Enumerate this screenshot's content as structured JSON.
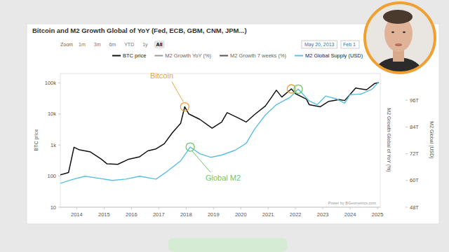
{
  "chart_data": {
    "type": "line",
    "title": "Bitcoin and M2 Growth Global of YoY (Fed, ECB, GBM, CNM, JPM...)",
    "zoom_label": "Zoom",
    "zoom_buttons": [
      "1m",
      "3m",
      "6m",
      "YTD",
      "1y",
      "All"
    ],
    "date_from": "May 20, 2013",
    "date_to": "Feb 1",
    "ylabel": "BTC price",
    "y2label": "M2 Global (USD)",
    "y3label": "M2 Growth Global of YoY (%)",
    "credit": "Power by BGeometrics.com",
    "annotations": [
      {
        "text": "Bitcoin",
        "color": "#e8a33c"
      },
      {
        "text": "Global M2",
        "color": "#6cc86a"
      }
    ],
    "log": "y",
    "grid": false,
    "legend": "top",
    "xlim": [
      2013.4,
      2025.1
    ],
    "xticks": [
      2014,
      2015,
      2016,
      2017,
      2018,
      2019,
      2020,
      2021,
      2022,
      2023,
      2024,
      2025
    ],
    "ylim": [
      10,
      200000
    ],
    "yticks": [
      10,
      100,
      {
        "value": 1000,
        "label": "1k"
      },
      {
        "value": 10000,
        "label": "10k"
      },
      {
        "value": 100000,
        "label": "100k"
      }
    ],
    "y2lim": [
      48,
      108
    ],
    "y2ticks": [
      {
        "value": 48,
        "label": "48T"
      },
      {
        "value": 60,
        "label": "60T"
      },
      {
        "value": 72,
        "label": "72T"
      },
      {
        "value": 84,
        "label": "84T"
      },
      {
        "value": 96,
        "label": "96T"
      }
    ],
    "series": [
      {
        "name": "BTC price",
        "color": "#111111",
        "type": "line",
        "x": [
          2013.4,
          2013.7,
          2013.9,
          2014.1,
          2014.5,
          2014.9,
          2015.1,
          2015.5,
          2015.9,
          2016.3,
          2016.6,
          2016.9,
          2017.2,
          2017.5,
          2017.8,
          2017.95,
          2018.1,
          2018.5,
          2018.95,
          2019.3,
          2019.5,
          2019.9,
          2020.2,
          2020.5,
          2020.9,
          2021.1,
          2021.3,
          2021.5,
          2021.85,
          2022.0,
          2022.4,
          2022.5,
          2022.9,
          2023.2,
          2023.6,
          2023.8,
          2024.0,
          2024.2,
          2024.6,
          2024.9,
          2025.05
        ],
        "values": [
          110,
          130,
          850,
          700,
          600,
          350,
          250,
          240,
          350,
          420,
          650,
          750,
          1100,
          2500,
          5000,
          17000,
          10000,
          6700,
          3500,
          5500,
          11000,
          7500,
          5500,
          9500,
          18000,
          32000,
          58000,
          35000,
          64000,
          45000,
          30000,
          20000,
          17000,
          25000,
          29000,
          27000,
          43000,
          68000,
          60000,
          96000,
          102000
        ]
      },
      {
        "name": "M2 Growth YoY (%)",
        "color": "#9a9a9a",
        "type": "line",
        "axis": "y2",
        "x": [
          2013.4,
          2025.05
        ],
        "values": [
          null,
          null
        ]
      },
      {
        "name": "M2 Growth 7 weeks (%)",
        "color": "#555555",
        "type": "line",
        "axis": "y2",
        "x": [
          2013.4,
          2025.05
        ],
        "values": [
          null,
          null
        ]
      },
      {
        "name": "M2 Global Supply (USD)",
        "color": "#5bbfe0",
        "type": "line",
        "axis": "y2",
        "x": [
          2013.4,
          2013.8,
          2014.3,
          2014.8,
          2015.3,
          2015.8,
          2016.3,
          2016.9,
          2017.3,
          2017.8,
          2018.15,
          2018.5,
          2018.9,
          2019.3,
          2019.8,
          2020.2,
          2020.5,
          2020.9,
          2021.3,
          2021.8,
          2022.1,
          2022.5,
          2022.8,
          2023.1,
          2023.5,
          2023.8,
          2024.0,
          2024.4,
          2024.8,
          2025.05
        ],
        "values": [
          58.7,
          60.3,
          61.9,
          61,
          60,
          60.6,
          61.9,
          60.6,
          64,
          68.8,
          75,
          72,
          70.4,
          71.4,
          73.6,
          76.7,
          83,
          89.4,
          94,
          97.3,
          101,
          95.7,
          94,
          97.9,
          96.6,
          94.7,
          98.5,
          98.8,
          101,
          104.2
        ]
      }
    ]
  }
}
